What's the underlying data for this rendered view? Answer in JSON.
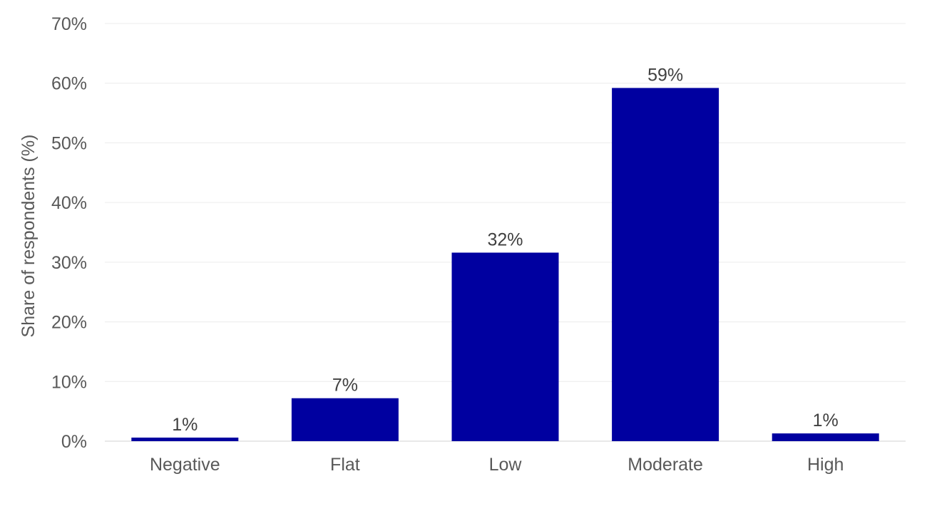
{
  "chart_data": {
    "type": "bar",
    "title": "",
    "xlabel": "",
    "ylabel": "Share of respondents (%)",
    "categories": [
      "Negative",
      "Flat",
      "Low",
      "Moderate",
      "High"
    ],
    "values": [
      0.6,
      7.2,
      31.6,
      59.2,
      1.3
    ],
    "data_labels": [
      "1%",
      "7%",
      "32%",
      "59%",
      "1%"
    ],
    "ylim": [
      0,
      70
    ],
    "yticks": [
      0,
      10,
      20,
      30,
      40,
      50,
      60,
      70
    ],
    "ytick_labels": [
      "0%",
      "10%",
      "20%",
      "30%",
      "40%",
      "50%",
      "60%",
      "70%"
    ],
    "grid": true,
    "legend": "none",
    "colors": {
      "bar": "#0000a0"
    }
  }
}
